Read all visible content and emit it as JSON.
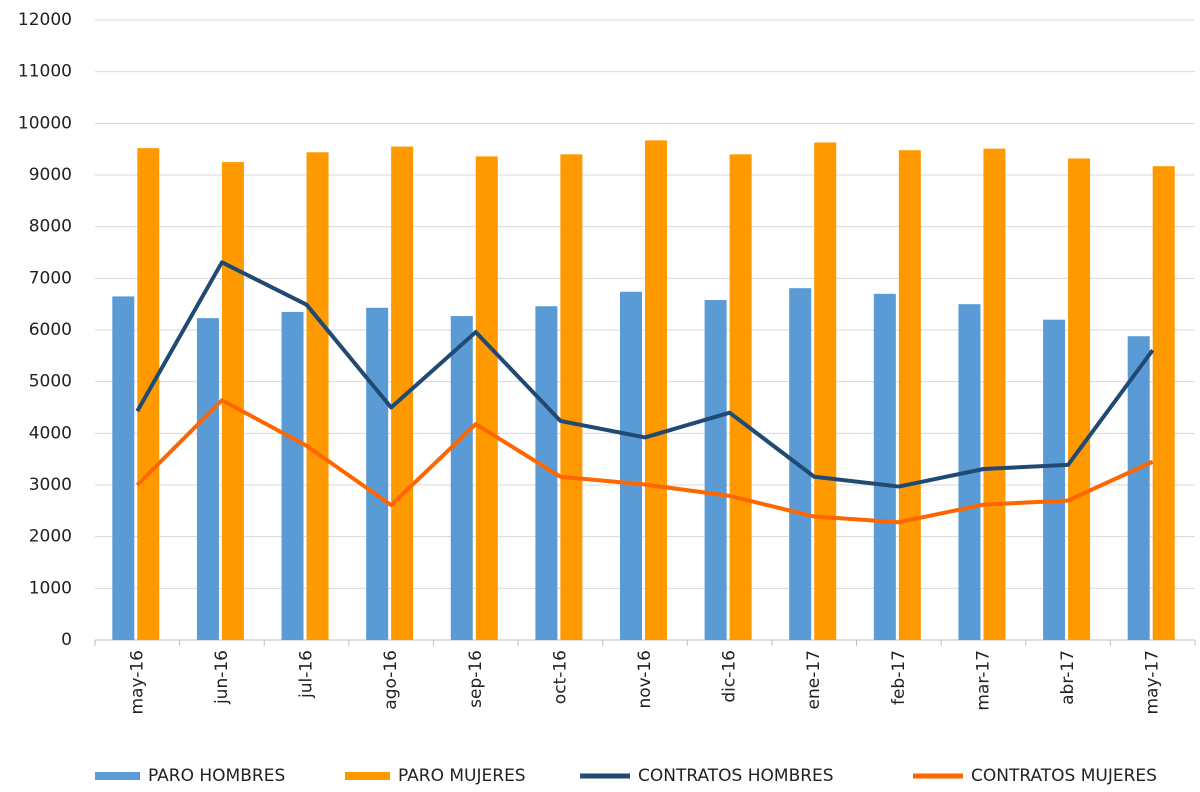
{
  "chart_data": {
    "type": "bar_line",
    "categories": [
      "may-16",
      "jun-16",
      "jul-16",
      "ago-16",
      "sep-16",
      "oct-16",
      "nov-16",
      "dic-16",
      "ene-17",
      "feb-17",
      "mar-17",
      "abr-17",
      "may-17"
    ],
    "series": [
      {
        "name": "PARO HOMBRES",
        "kind": "bar",
        "color": "#5b9bd5",
        "values": [
          6650,
          6230,
          6350,
          6430,
          6270,
          6460,
          6740,
          6580,
          6810,
          6700,
          6500,
          6200,
          5880
        ]
      },
      {
        "name": "PARO MUJERES",
        "kind": "bar",
        "color": "#ff9900",
        "values": [
          9520,
          9250,
          9440,
          9550,
          9360,
          9400,
          9670,
          9400,
          9630,
          9480,
          9510,
          9320,
          9170
        ]
      },
      {
        "name": "CONTRATOS HOMBRES",
        "kind": "line",
        "color": "#204a73",
        "values": [
          4430,
          7310,
          6490,
          4500,
          5960,
          4240,
          3920,
          4400,
          3160,
          2970,
          3310,
          3390,
          5610
        ]
      },
      {
        "name": "CONTRATOS MUJERES",
        "kind": "line",
        "color": "#ff6600",
        "values": [
          3000,
          4640,
          3760,
          2610,
          4180,
          3160,
          3010,
          2790,
          2390,
          2280,
          2620,
          2700,
          3450
        ]
      }
    ],
    "ylim": [
      0,
      12000
    ],
    "yticks": [
      0,
      1000,
      2000,
      3000,
      4000,
      5000,
      6000,
      7000,
      8000,
      9000,
      10000,
      11000,
      12000
    ],
    "grid": true,
    "legend": "bottom"
  }
}
